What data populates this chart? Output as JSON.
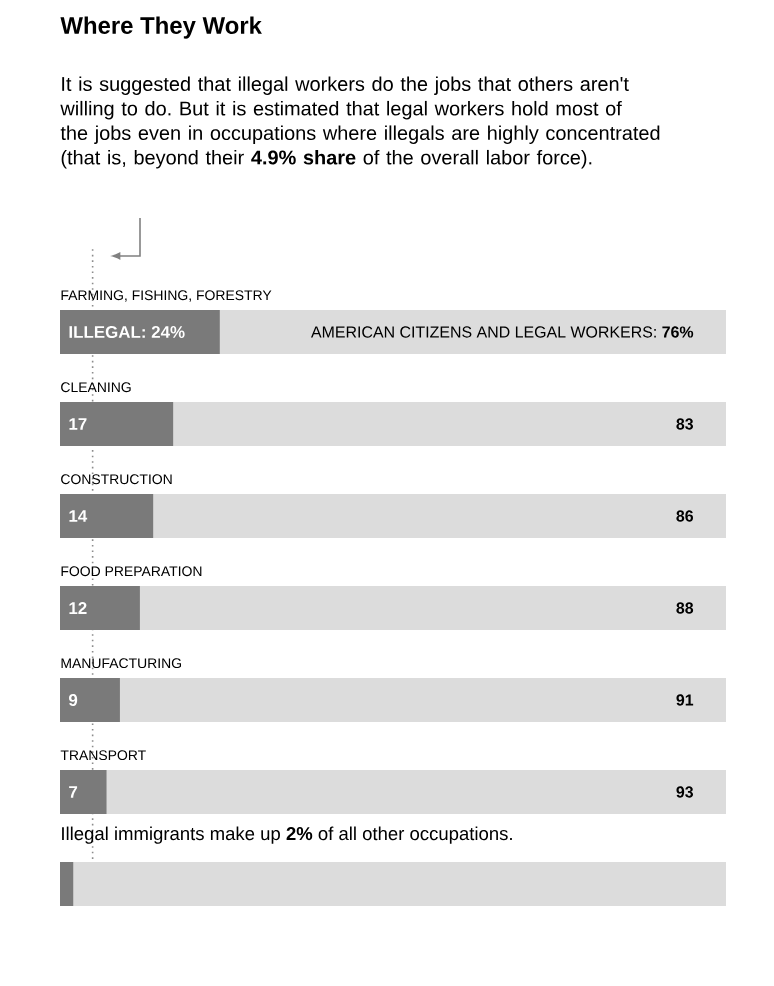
{
  "chart_data": {
    "type": "bar",
    "orientation": "horizontal",
    "stacked": true,
    "title": "Where They Work",
    "subtitle": "It is suggested that illegal workers do the jobs that others aren't willing to do. But it is estimated that legal workers hold most of the jobs even in occupations where illegals are highly concentrated (that is, beyond their **4.9% share** of the overall labor force).",
    "categories": [
      "FARMING, FISHING, FORESTRY",
      "CLEANING",
      "CONSTRUCTION",
      "FOOD PREPARATION",
      "MANUFACTURING",
      "TRANSPORT",
      "Illegal immigrants make up **2%** of all other occupations."
    ],
    "series": [
      {
        "color": "#7a7a7a",
        "values": [
          24,
          17,
          14,
          12,
          9,
          7,
          2
        ],
        "value_labels": [
          "ILLEGAL: 24%",
          "17",
          "14",
          "12",
          "9",
          "7",
          null
        ]
      },
      {
        "color": "#dcdcdc",
        "values": [
          76,
          83,
          86,
          88,
          91,
          93,
          98
        ],
        "value_labels": [
          "AMERICAN CITIZENS AND LEGAL WORKERS: **76%**",
          "83",
          "86",
          "88",
          "91",
          "93",
          null
        ]
      }
    ],
    "ref_lines": [
      {
        "axis": "x",
        "value": 4.9,
        "line_style": "dotted",
        "color": "#8c8c8c"
      }
    ]
  }
}
